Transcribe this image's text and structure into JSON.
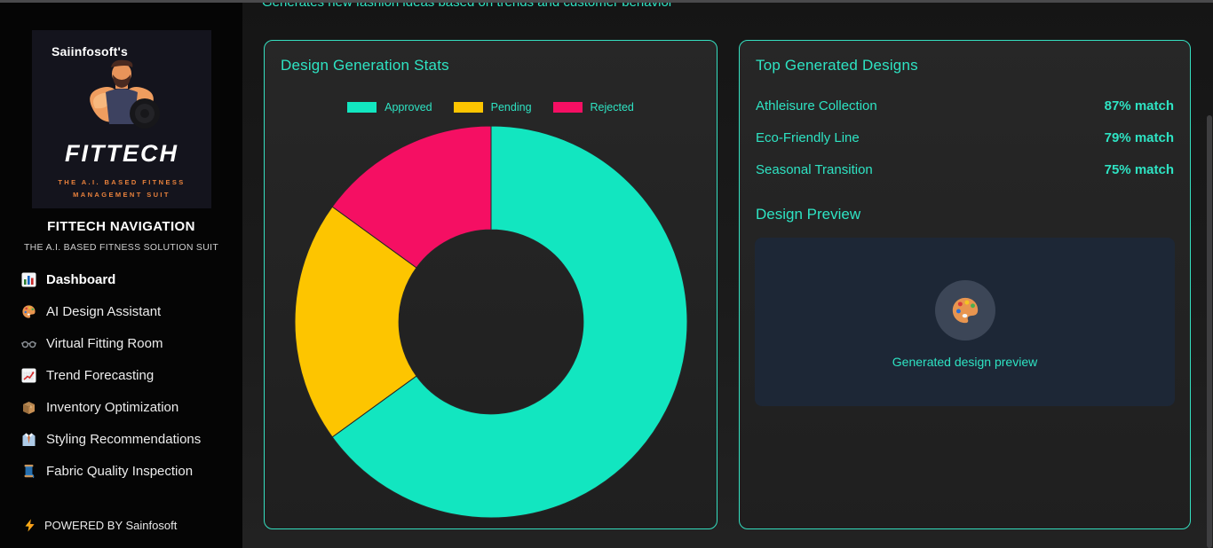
{
  "accent": "#2ee3c3",
  "main": {
    "top_note": "Generates new fashion ideas based on trends and customer behavior",
    "stats_card": {
      "title": "Design Generation Stats"
    },
    "designs_card": {
      "title": "Top Generated Designs",
      "items": [
        {
          "name": "Athleisure Collection",
          "match": "87% match"
        },
        {
          "name": "Eco-Friendly Line",
          "match": "79% match"
        },
        {
          "name": "Seasonal Transition",
          "match": "75% match"
        }
      ],
      "preview": {
        "title": "Design Preview",
        "caption": "Generated design preview",
        "icon": "palette-icon"
      }
    }
  },
  "chart_data": {
    "type": "pie",
    "variant": "donut",
    "title": "Design Generation Stats",
    "categories": [
      "Approved",
      "Pending",
      "Rejected"
    ],
    "values": [
      65,
      20,
      15
    ],
    "colors": [
      "#12e6c0",
      "#fdc500",
      "#f50f63"
    ],
    "legend_position": "top",
    "inner_radius_ratio": 0.47,
    "start_angle_deg": 0,
    "direction": "clockwise"
  },
  "sidebar": {
    "logo": {
      "brand": "Saiinfosoft's",
      "title": "FITTECH",
      "tagline": "THE A.I. BASED FITNESS MANAGEMENT SUIT",
      "art": "bodybuilder-dumbbell-illustration"
    },
    "heading": "FITTECH NAVIGATION",
    "subheading": "THE A.I. BASED FITNESS SOLUTION SUIT",
    "nav": [
      {
        "label": "Dashboard",
        "icon": "bar-chart-icon",
        "active": true
      },
      {
        "label": "AI Design Assistant",
        "icon": "palette-icon",
        "active": false
      },
      {
        "label": "Virtual Fitting Room",
        "icon": "glasses-icon",
        "active": false
      },
      {
        "label": "Trend Forecasting",
        "icon": "chart-increasing-icon",
        "active": false
      },
      {
        "label": "Inventory Optimization",
        "icon": "package-icon",
        "active": false
      },
      {
        "label": "Styling Recommendations",
        "icon": "shirt-tie-icon",
        "active": false
      },
      {
        "label": "Fabric Quality Inspection",
        "icon": "thread-spool-icon",
        "active": false
      }
    ],
    "footer": {
      "label": "POWERED BY Sainfosoft",
      "icon": "lightning-icon"
    }
  }
}
